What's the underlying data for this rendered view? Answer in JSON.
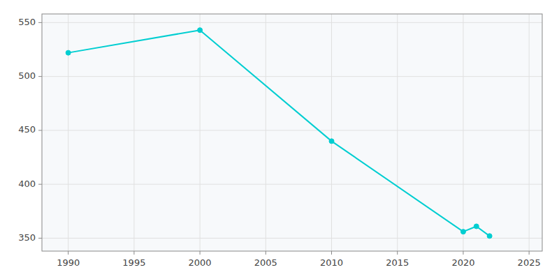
{
  "chart_data": {
    "type": "line",
    "x": [
      1990,
      2000,
      2010,
      2020,
      2021,
      2022
    ],
    "values": [
      522,
      543,
      440,
      356,
      361,
      352
    ],
    "color": "#00CED1",
    "marker": "circle",
    "xlim": [
      1988,
      2026
    ],
    "ylim": [
      338,
      558
    ],
    "xticks": [
      1990,
      1995,
      2000,
      2005,
      2010,
      2015,
      2020,
      2025
    ],
    "yticks": [
      350,
      400,
      450,
      500,
      550
    ],
    "grid": true
  }
}
